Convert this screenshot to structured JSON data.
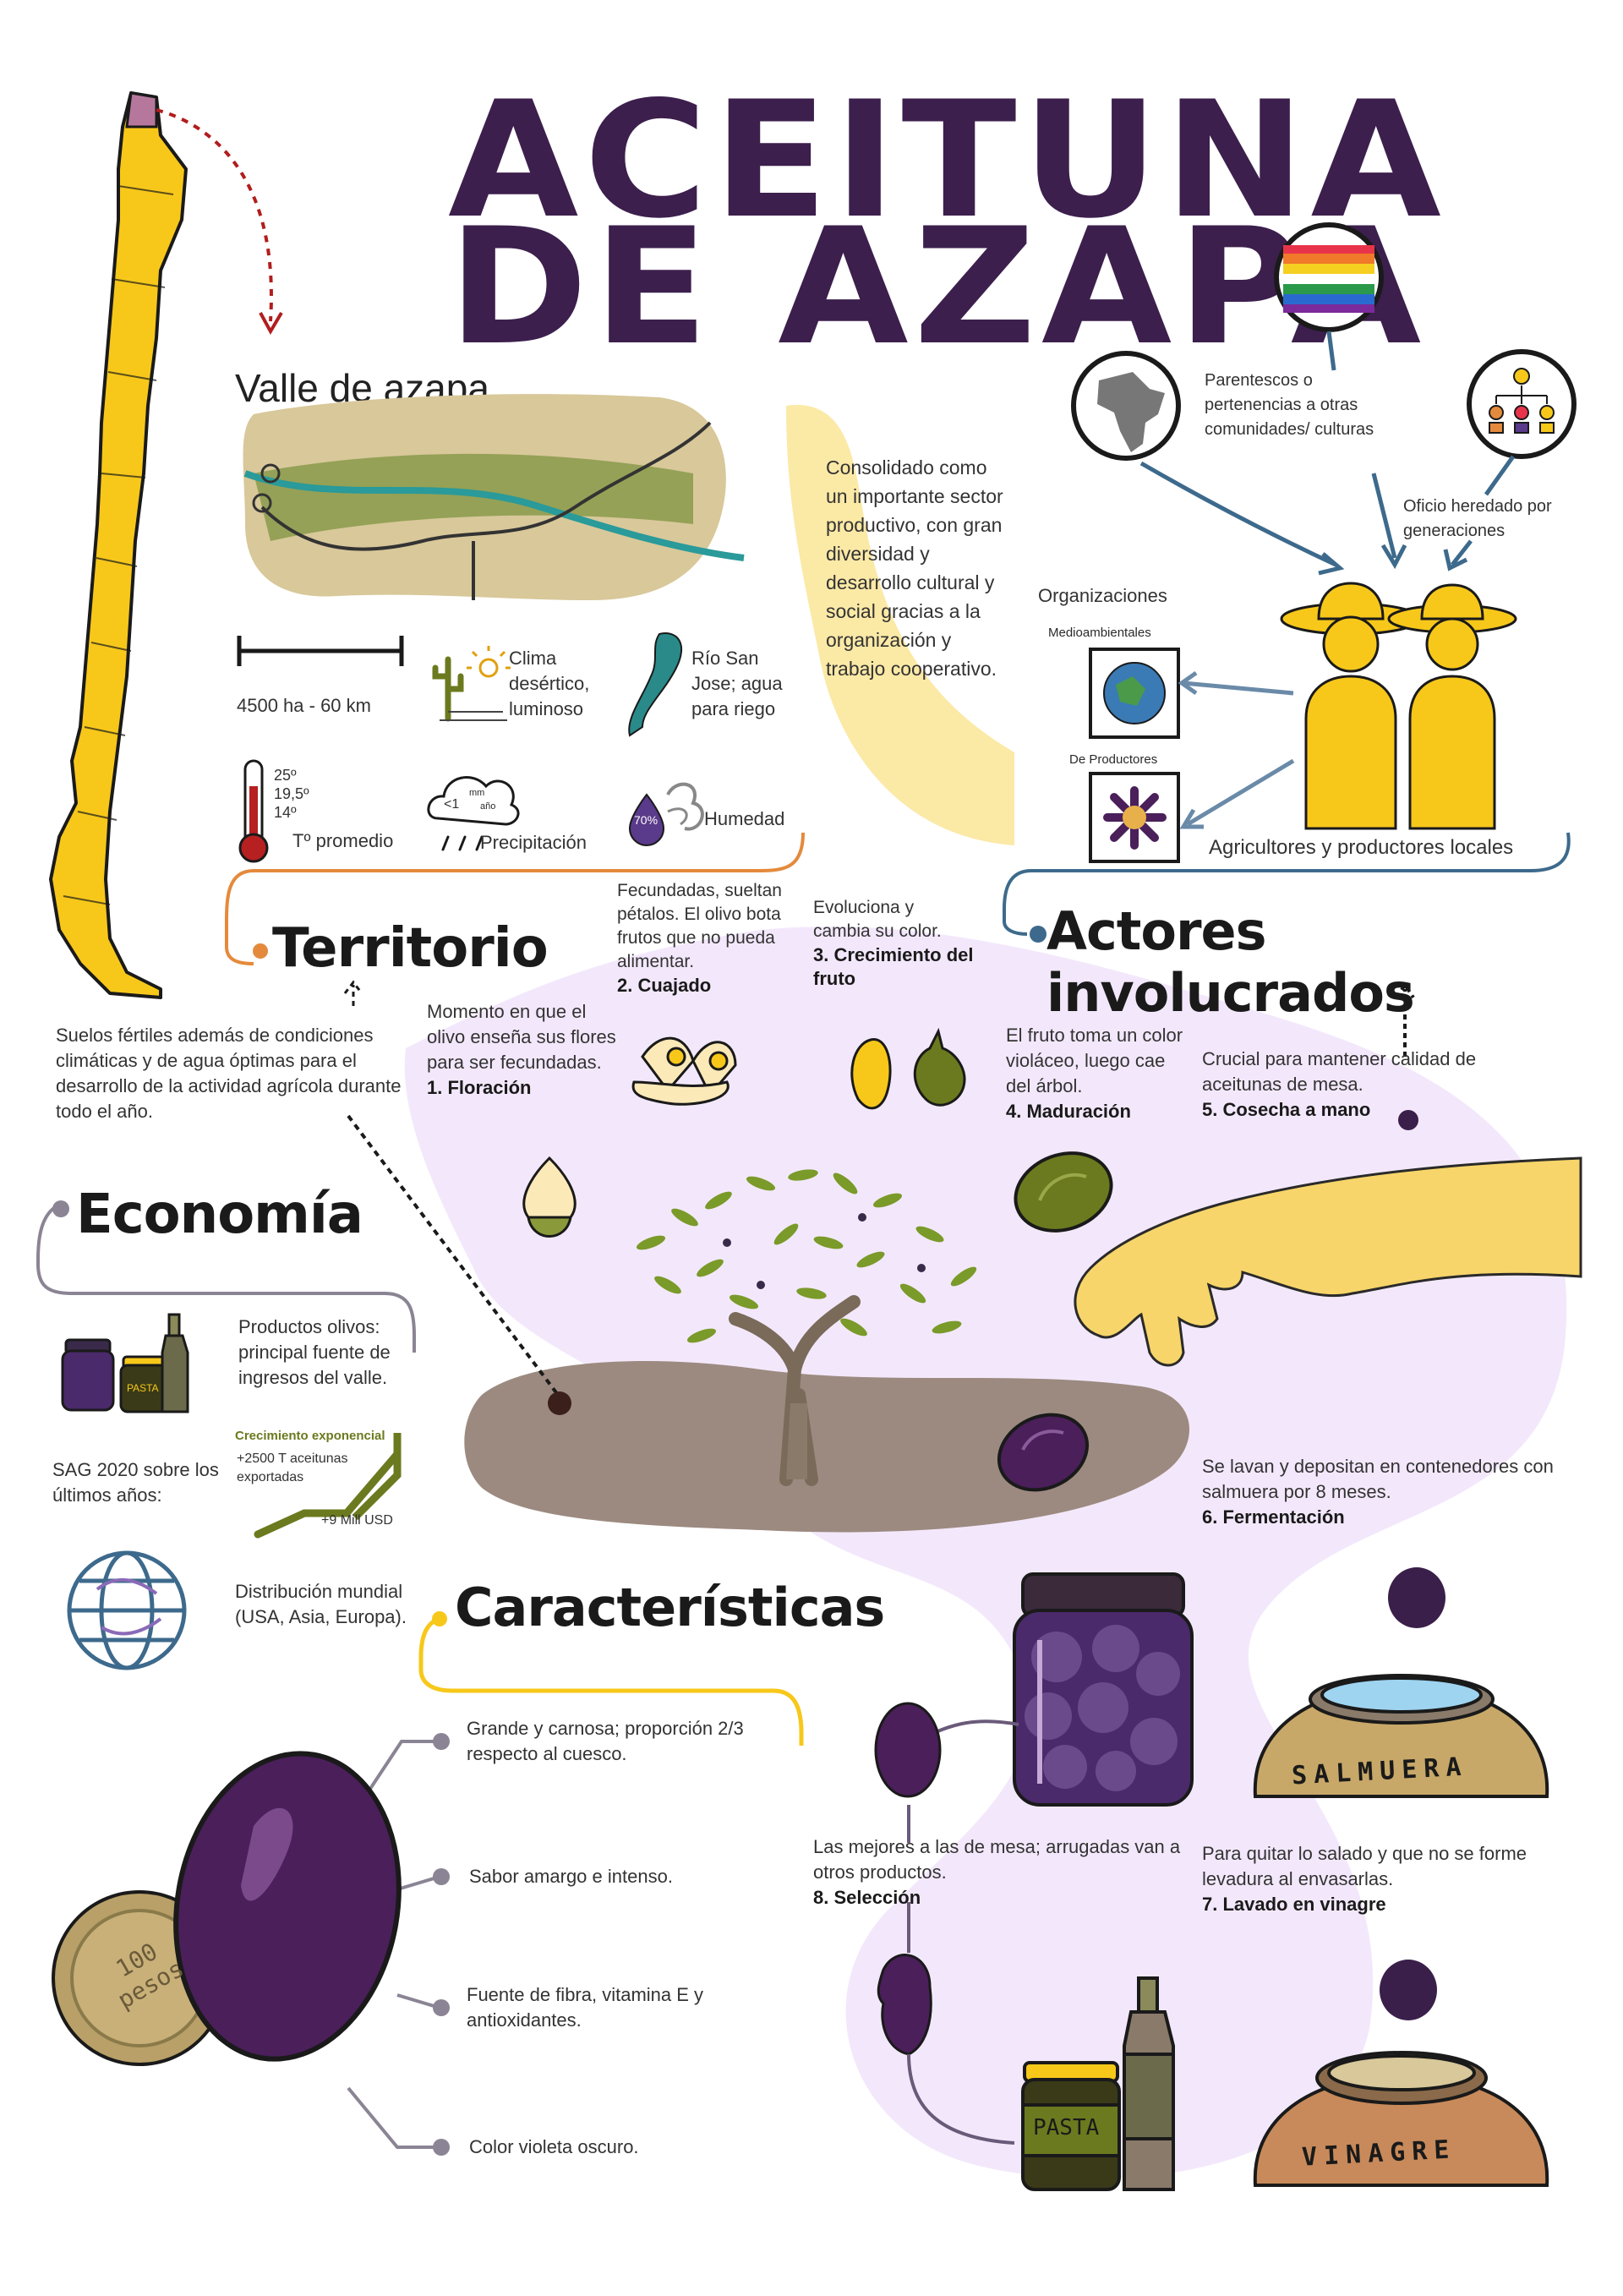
{
  "title": {
    "line1": "ACEITUNA",
    "line2": "DE AZAPA"
  },
  "colors": {
    "purple_dark": "#3c1f4d",
    "yellow": "#f7c81a",
    "lilac": "#f3e8fb",
    "olive_purple": "#4a1f5a",
    "olive_green": "#6b7a1e",
    "soil": "#9c8a80",
    "line_blue": "#3d6a8c",
    "line_orange": "#e48a3c",
    "line_gray": "#8b8494"
  },
  "territorio": {
    "heading": "Territorio",
    "valley_label": "Valle de azapa",
    "scale": "4500 ha - 60 km",
    "climate": "Clima desértico, luminoso",
    "river": "Río San Jose; agua para riego",
    "temps": [
      "25º",
      "19,5º",
      "14º"
    ],
    "temp_label": "Tº promedio",
    "rain_value": "<1",
    "rain_unit_top": "mm",
    "rain_unit_bottom": "año",
    "rain_label": "Precipitación",
    "humidity_value": "70%",
    "humidity_label": "Humedad",
    "description": "Suelos fértiles además de condiciones climáticas y de agua óptimas para el desarrollo de la actividad agrícola durante todo el año."
  },
  "consolidado": "Consolidado como un importante sector productivo, con gran diversidad y desarrollo cultural y social gracias a la organización y trabajo cooperativo.",
  "actores": {
    "heading": "Actores involucrados",
    "parentescos": "Parentescos o pertenencias a otras comunidades/ culturas",
    "oficio": "Oficio heredado por generaciones",
    "organizaciones": "Organizaciones",
    "org_medio": "Medioambientales",
    "org_prod": "De Productores",
    "agricultores": "Agricultores y productores locales"
  },
  "steps": [
    {
      "desc": "Momento en que el olivo enseña sus flores para ser fecundadas.",
      "title": "1. Floración"
    },
    {
      "desc": "Fecundadas, sueltan pétalos. El olivo bota frutos que no pueda alimentar.",
      "title": "2. Cuajado"
    },
    {
      "desc": "Evoluciona y cambia su color.",
      "title": "3. Crecimiento del fruto"
    },
    {
      "desc": "El fruto toma un color violáceo, luego cae del árbol.",
      "title": "4. Maduración"
    },
    {
      "desc": "Crucial para mantener calidad de aceitunas de mesa.",
      "title": "5. Cosecha a mano"
    },
    {
      "desc": "Se lavan y depositan en contenedores con salmuera por 8 meses.",
      "title": "6. Fermentación"
    },
    {
      "desc": "Para quitar lo salado y que no se forme levadura al envasarlas.",
      "title": "7. Lavado en vinagre"
    },
    {
      "desc": "Las mejores a las de mesa; arrugadas van a otros productos.",
      "title": "8. Selección"
    }
  ],
  "economia": {
    "heading": "Economía",
    "productos": "Productos olivos: principal fuente de ingresos del valle.",
    "jar_label": "PASTA",
    "sag": "SAG 2020 sobre los últimos años:",
    "crecimiento": "Crecimiento exponencial",
    "toneladas": "+2500 T aceitunas exportadas",
    "usd": "+9 Mill USD",
    "distribucion": "Distribución mundial (USA, Asia, Europa)."
  },
  "caracteristicas": {
    "heading": "Características",
    "items": [
      "Grande y carnosa; proporción 2/3 respecto al cuesco.",
      "Sabor amargo e intenso.",
      "Fuente de fibra, vitamina E y antioxidantes.",
      "Color violeta oscuro."
    ],
    "coin": "100 pesos"
  },
  "containers": {
    "salmuera": "SALMUERA",
    "vinagre": "VINAGRE",
    "pasta": "PASTA"
  }
}
